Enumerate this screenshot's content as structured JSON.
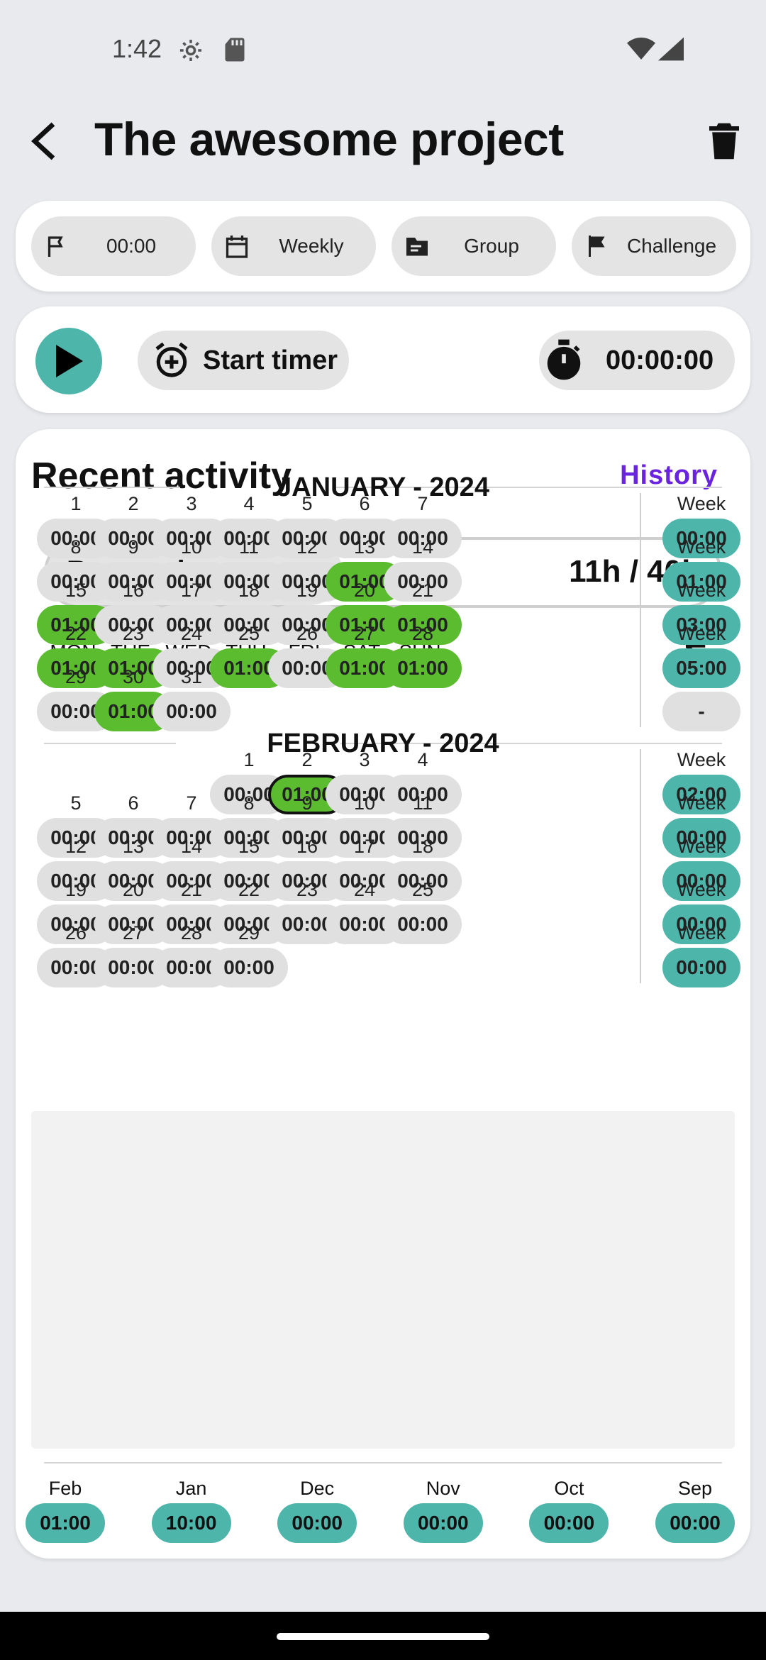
{
  "status_bar": {
    "time": "1:42"
  },
  "app_bar": {
    "title": "The awesome project"
  },
  "chips": [
    {
      "label": "00:00",
      "icon": "flag-outline-icon"
    },
    {
      "label": "Weekly",
      "icon": "calendar-icon"
    },
    {
      "label": "Group",
      "icon": "folder-icon"
    },
    {
      "label": "Challenge",
      "icon": "flag-icon"
    }
  ],
  "timer": {
    "start_label": "Start timer",
    "elapsed": "00:00:00"
  },
  "activity": {
    "title": "Recent activity",
    "history_label": "History",
    "goal": {
      "label": "Research",
      "value": "11h / 40h",
      "progress": 0.275
    },
    "days_of_week": [
      "MON",
      "TUE",
      "WED",
      "THU",
      "FRI",
      "SAT",
      "SUN"
    ],
    "sigma": "Σ",
    "months": [
      {
        "title": "JANUARY - 2024",
        "weeks": [
          {
            "days": [
              {
                "d": "1",
                "t": "00:00"
              },
              {
                "d": "2",
                "t": "00:00"
              },
              {
                "d": "3",
                "t": "00:00"
              },
              {
                "d": "4",
                "t": "00:00"
              },
              {
                "d": "5",
                "t": "00:00"
              },
              {
                "d": "6",
                "t": "00:00"
              },
              {
                "d": "7",
                "t": "00:00"
              }
            ],
            "week_label": "Week",
            "week_total": "00:00"
          },
          {
            "days": [
              {
                "d": "8",
                "t": "00:00"
              },
              {
                "d": "9",
                "t": "00:00"
              },
              {
                "d": "10",
                "t": "00:00"
              },
              {
                "d": "11",
                "t": "00:00"
              },
              {
                "d": "12",
                "t": "00:00"
              },
              {
                "d": "13",
                "t": "01:00",
                "active": true
              },
              {
                "d": "14",
                "t": "00:00"
              }
            ],
            "week_label": "Week",
            "week_total": "01:00"
          },
          {
            "days": [
              {
                "d": "15",
                "t": "01:00",
                "active": true
              },
              {
                "d": "16",
                "t": "00:00"
              },
              {
                "d": "17",
                "t": "00:00"
              },
              {
                "d": "18",
                "t": "00:00"
              },
              {
                "d": "19",
                "t": "00:00"
              },
              {
                "d": "20",
                "t": "01:00",
                "active": true
              },
              {
                "d": "21",
                "t": "01:00",
                "active": true
              }
            ],
            "week_label": "Week",
            "week_total": "03:00"
          },
          {
            "days": [
              {
                "d": "22",
                "t": "01:00",
                "active": true
              },
              {
                "d": "23",
                "t": "01:00",
                "active": true
              },
              {
                "d": "24",
                "t": "00:00"
              },
              {
                "d": "25",
                "t": "01:00",
                "active": true
              },
              {
                "d": "26",
                "t": "00:00"
              },
              {
                "d": "27",
                "t": "01:00",
                "active": true
              },
              {
                "d": "28",
                "t": "01:00",
                "active": true
              }
            ],
            "week_label": "Week",
            "week_total": "05:00"
          },
          {
            "days": [
              {
                "d": "29",
                "t": "00:00"
              },
              {
                "d": "30",
                "t": "01:00",
                "active": true
              },
              {
                "d": "31",
                "t": "00:00"
              },
              null,
              null,
              null,
              null
            ],
            "week_label": "",
            "week_total": "-"
          }
        ]
      },
      {
        "title": "FEBRUARY - 2024",
        "weeks": [
          {
            "days": [
              null,
              null,
              null,
              {
                "d": "1",
                "t": "00:00"
              },
              {
                "d": "2",
                "t": "01:00",
                "active": true,
                "today": true
              },
              {
                "d": "3",
                "t": "00:00"
              },
              {
                "d": "4",
                "t": "00:00"
              }
            ],
            "week_label": "Week",
            "week_total": "02:00"
          },
          {
            "days": [
              {
                "d": "5",
                "t": "00:00"
              },
              {
                "d": "6",
                "t": "00:00"
              },
              {
                "d": "7",
                "t": "00:00"
              },
              {
                "d": "8",
                "t": "00:00"
              },
              {
                "d": "9",
                "t": "00:00"
              },
              {
                "d": "10",
                "t": "00:00"
              },
              {
                "d": "11",
                "t": "00:00"
              }
            ],
            "week_label": "Week",
            "week_total": "00:00"
          },
          {
            "days": [
              {
                "d": "12",
                "t": "00:00"
              },
              {
                "d": "13",
                "t": "00:00"
              },
              {
                "d": "14",
                "t": "00:00"
              },
              {
                "d": "15",
                "t": "00:00"
              },
              {
                "d": "16",
                "t": "00:00"
              },
              {
                "d": "17",
                "t": "00:00"
              },
              {
                "d": "18",
                "t": "00:00"
              }
            ],
            "week_label": "Week",
            "week_total": "00:00"
          },
          {
            "days": [
              {
                "d": "19",
                "t": "00:00"
              },
              {
                "d": "20",
                "t": "00:00"
              },
              {
                "d": "21",
                "t": "00:00"
              },
              {
                "d": "22",
                "t": "00:00"
              },
              {
                "d": "23",
                "t": "00:00"
              },
              {
                "d": "24",
                "t": "00:00"
              },
              {
                "d": "25",
                "t": "00:00"
              }
            ],
            "week_label": "Week",
            "week_total": "00:00"
          },
          {
            "days": [
              {
                "d": "26",
                "t": "00:00"
              },
              {
                "d": "27",
                "t": "00:00"
              },
              {
                "d": "28",
                "t": "00:00"
              },
              {
                "d": "29",
                "t": "00:00"
              },
              null,
              null,
              null
            ],
            "week_label": "Week",
            "week_total": "00:00"
          }
        ]
      }
    ],
    "month_totals": [
      {
        "month": "Feb",
        "total": "01:00"
      },
      {
        "month": "Jan",
        "total": "10:00"
      },
      {
        "month": "Dec",
        "total": "00:00"
      },
      {
        "month": "Nov",
        "total": "00:00"
      },
      {
        "month": "Oct",
        "total": "00:00"
      },
      {
        "month": "Sep",
        "total": "00:00"
      }
    ]
  },
  "colors": {
    "accent_teal": "#4eb5ab",
    "active_green": "#5cbc30",
    "history_purple": "#6a24e0"
  }
}
